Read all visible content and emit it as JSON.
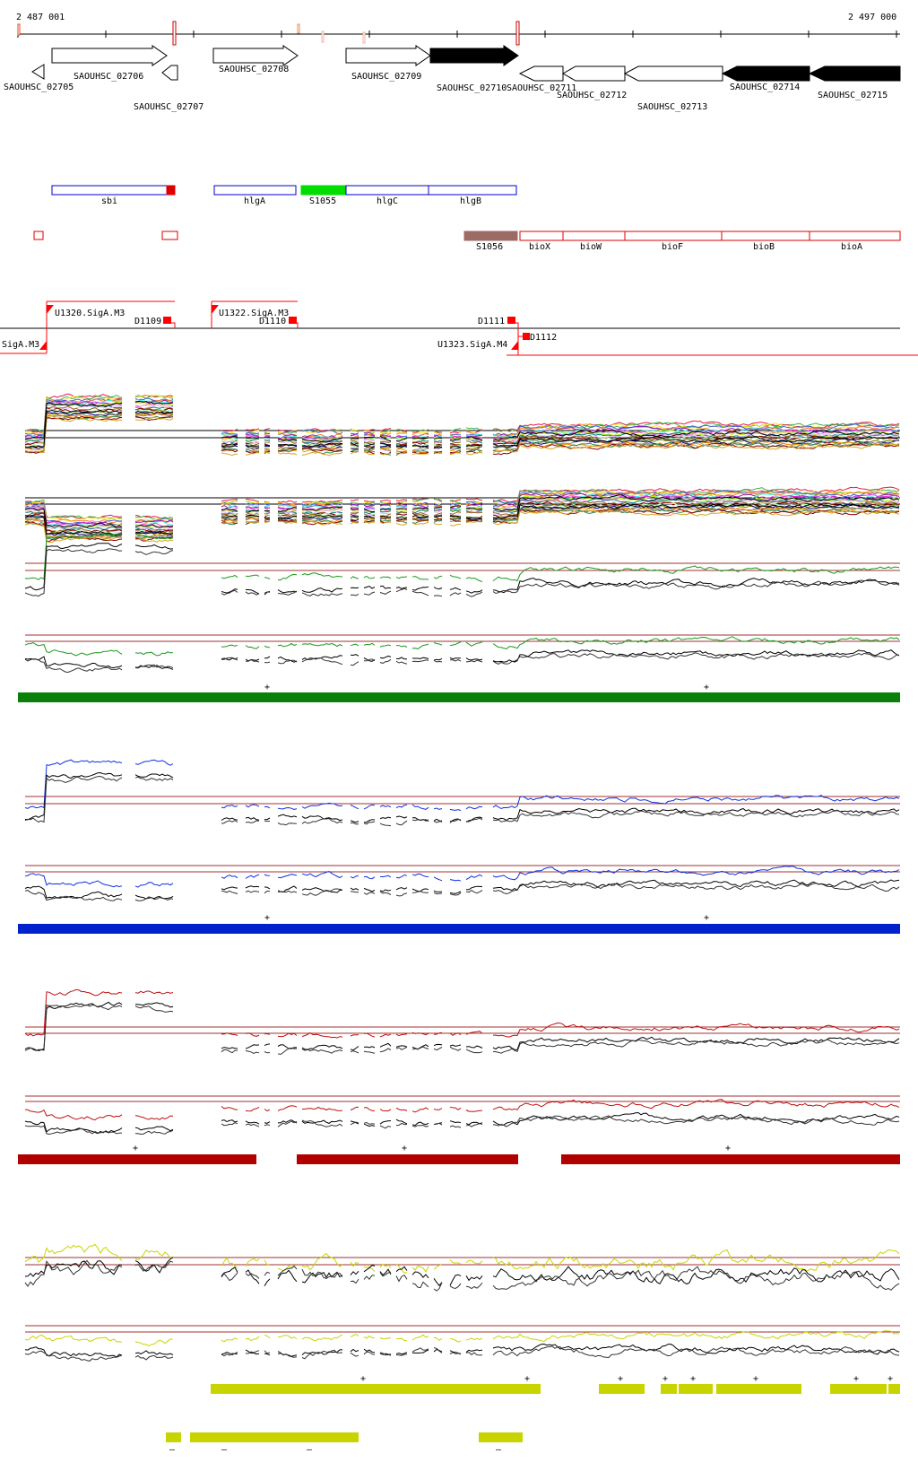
{
  "coords": {
    "start": "2 487 001",
    "end": "2 497 000"
  },
  "colors": {
    "gene_fwd_fill": "#ffffff",
    "gene_dark_fill": "#000000",
    "annotation_blue": "#0000cc",
    "annotation_red": "#dd0000",
    "annotation_green": "#00dd00",
    "annotation_brown": "#9c6b66",
    "tss_red": "#ff0000",
    "threshold": "#a03030",
    "green_track": "#0a800a",
    "blue_track": "#0022cc",
    "red_track": "#b00000",
    "yellow_track": "#c8d400"
  },
  "genes": [
    {
      "label": "SAOUHSC_02705",
      "style": "white",
      "dir": "left"
    },
    {
      "label": "SAOUHSC_02706",
      "style": "white",
      "dir": "right"
    },
    {
      "label": "SAOUHSC_02707",
      "style": "white",
      "dir": "left"
    },
    {
      "label": "SAOUHSC_02708",
      "style": "white",
      "dir": "right"
    },
    {
      "label": "SAOUHSC_02709",
      "style": "white",
      "dir": "right"
    },
    {
      "label": "SAOUHSC_02710",
      "style": "black",
      "dir": "right"
    },
    {
      "label": "SAOUHSC_02711",
      "style": "white",
      "dir": "left"
    },
    {
      "label": "SAOUHSC_02712",
      "style": "white",
      "dir": "left"
    },
    {
      "label": "SAOUHSC_02713",
      "style": "white",
      "dir": "left"
    },
    {
      "label": "SAOUHSC_02714",
      "style": "black",
      "dir": "left"
    },
    {
      "label": "SAOUHSC_02715",
      "style": "black",
      "dir": "left"
    }
  ],
  "annotations_row1": [
    {
      "label": "sbi",
      "color": "blue"
    },
    {
      "label": "hlgA",
      "color": "blue"
    },
    {
      "label": "S1055",
      "color": "green"
    },
    {
      "label": "hlgC",
      "color": "blue"
    },
    {
      "label": "hlgB",
      "color": "blue"
    }
  ],
  "annotations_row2": [
    {
      "label": "S1056",
      "color": "brown"
    },
    {
      "label": "bioX",
      "color": "red"
    },
    {
      "label": "bioW",
      "color": "red"
    },
    {
      "label": "bioF",
      "color": "red"
    },
    {
      "label": "bioB",
      "color": "red"
    },
    {
      "label": "bioA",
      "color": "red"
    }
  ],
  "tss_labels": [
    "U1320.SigA.M3",
    "D1109",
    "U1322.SigA.M3",
    "D1110",
    "D1111",
    ".SigA.M3",
    "U1323.SigA.M4",
    "D1112"
  ],
  "strand_marks": {
    "plus": "+",
    "minus": "–"
  }
}
